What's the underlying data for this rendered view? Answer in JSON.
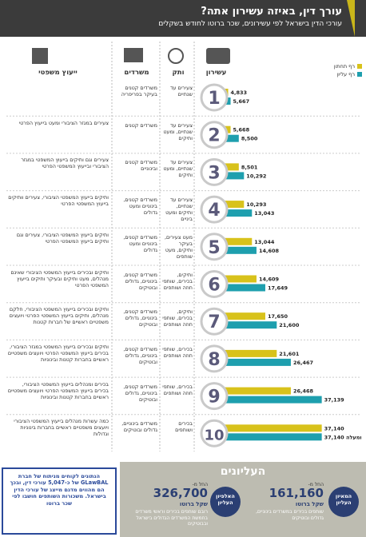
{
  "chart_data": {
    "type": "bar",
    "title": "עורך דין, באיזה עשירון אתה?",
    "subtitle": "עורכי הדין בישראל לפי עשירונים, שכר ברוטו לחודש בשקלים",
    "categories": [
      "1",
      "2",
      "3",
      "4",
      "5",
      "6",
      "7",
      "8",
      "9",
      "10"
    ],
    "series": [
      {
        "name": "רף תחתון",
        "color": "#d8c21b",
        "values": [
          4833,
          5668,
          8501,
          10293,
          13044,
          14609,
          17650,
          21601,
          26468,
          37140
        ],
        "value_labels": [
          "4,833",
          "5,668",
          "8,501",
          "10,293",
          "13,044",
          "14,609",
          "17,650",
          "21,601",
          "26,468",
          "37,140"
        ]
      },
      {
        "name": "רף עליון",
        "color": "#1e9fae",
        "values": [
          5667,
          8500,
          10292,
          13043,
          14608,
          17649,
          21600,
          26467,
          37139,
          37140
        ],
        "value_labels": [
          "5,667",
          "8,500",
          "10,292",
          "13,043",
          "14,608",
          "17,649",
          "21,600",
          "26,467",
          "37,139",
          "37,140 ומעלה"
        ]
      }
    ],
    "xlim": [
      0,
      40000
    ]
  },
  "headers": [
    "עשירון",
    "ותק",
    "משרדים",
    "ייעוץ משפטי"
  ],
  "rows": [
    {
      "seniority": "צעירים עד שנתיים",
      "offices": "משרדים קטנים בעיקר בפריפריה"
    },
    {
      "seniority": "צעירים עד שנתיים, ומעט ותיקים",
      "offices": "משרדים קטנים",
      "advice": "צעירים במגזר הציבורי ומעט בייעוץ הפרטי"
    },
    {
      "seniority": "צעירים עד שנתיים, ומעט ותיקים",
      "offices": "משרדים קטנים ובינוניים",
      "advice": "צעירים וגם ותיקים בייעוץ המשפטי במגזר הציבורי ובייעוץ המשפטי הפרטי"
    },
    {
      "seniority": "צעירים עד שנתיים, ותיקים ומעט ביניים",
      "offices": "משרדים קטנים, בינוניים ומעט גדולים",
      "advice": "ותיקים בייעוץ המשפטי הציבורי, צעירים וותיקים בייעוץ המשפטי הפרטי"
    },
    {
      "seniority": "מעט צעירים, בעיקר ותיקים, מעט שותפים",
      "offices": "משרדים קטנים, בינוניים ומעט גדולים",
      "advice": "ותיקים בייעוץ המשפטי הציבורי, צעירים וגם ותיקים בייעוץ המשפטי הפרטי"
    },
    {
      "seniority": "ותיקים, בכירים, שותפי חוזה ושותפים",
      "offices": "משרדים קטנים, בינוניים, גדולים ובוטיקים",
      "advice": "ותיקים ובכירים בייעוץ המשפטי הציבורי שאינם מנהלים, מעט ותיקים ובעיקר ותיקים בייעוץ המשפטי הפרטי"
    },
    {
      "seniority": "ותיקים, בכירים, שותפי חוזה ושותפים",
      "offices": "משרדים קטנים, בינוניים, גדולים ובוטיקים",
      "advice": "ותיקים ובכירים בייעוץ המשפטי הציבורי, חלקם מנהלים, ותיקים בייעוץ המשפטי הפרטי ויועצים משפטיים ראשיים של חברות קטנות"
    },
    {
      "seniority": "בכירים, שותפי חוזה ושותפים",
      "offices": "משרדים קטנים, בינוניים, גדולים ובוטיקים",
      "advice": "ותיקים ובכירים בייעוץ המשפטי במגזר הציבורי, בכירים בייעוץ המשפטי הפרטי ויועצים משפטיים ראשיים בחברות קטנות ובינוניות"
    },
    {
      "seniority": "בכירים, שותפי חוזה ושותפים",
      "offices": "משרדים קטנים, בינוניים, גדולים ובוטיקים",
      "advice": "בכירים ומנהלים בייעוץ המשפטי הציבורי, בכירים בייעוץ המשפטי הפרטי ויועצים משפטיים ראשיים בחברות קטנות ובינוניות"
    },
    {
      "seniority": "בכירים ושותפים",
      "offices": "משרדים בינוניים, גדולים ובוטיקים",
      "advice": "כמה עשרות מנהלים בייעוץ המשפטי הציבורי ויועצים משפטיים ראשיים בחברות בינוניות וגדולות"
    }
  ],
  "top": {
    "title": "העליונים",
    "groups": [
      {
        "badge": "המאיון העליון",
        "from": "החל מ-",
        "amount": "161,160",
        "unit": "שקל ברוטו",
        "text": "שותפים בכירים במשרדים בינוניים, גדולים ובוטיקים"
      },
      {
        "badge": "האלפיון העליון",
        "from": "החל מ-",
        "amount": "326,700",
        "unit": "שקל ברוטו",
        "text": "רובם שותפים בכירים וראשי משרדים בחמשת המשרדים הגדולים בישראל ובבוטיקים"
      }
    ]
  },
  "note": "הנתונים לקוחים מניתוח של חברת GLawBAL של כ-5,047 עורכי דין, ובכך הם מהווים מדגם מייצג של עורכי הדין בישראל. משכורות השותפים חושבו לפי שכר ברוטו"
}
